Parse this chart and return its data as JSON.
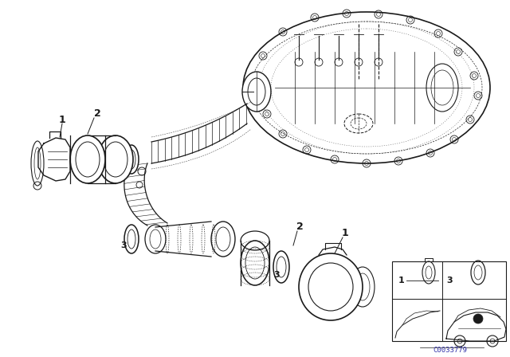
{
  "bg_color": "#ffffff",
  "line_color": "#1a1a1a",
  "fig_width": 6.4,
  "fig_height": 4.48,
  "dpi": 100,
  "watermark": "C0033779",
  "watermark_color": "#3333aa"
}
